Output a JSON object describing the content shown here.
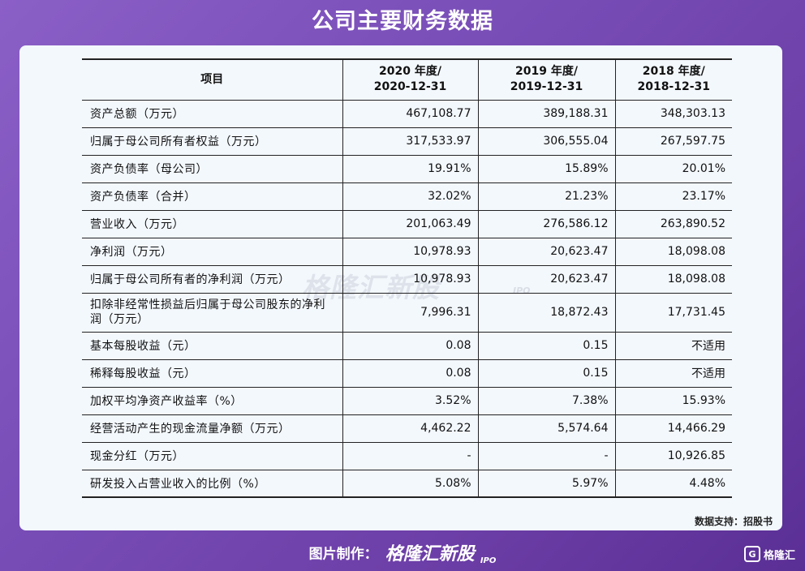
{
  "title": "公司主要财务数据",
  "table": {
    "header": {
      "item": "项目",
      "cols": [
        {
          "line1": "2020 年度/",
          "line2": "2020-12-31"
        },
        {
          "line1": "2019 年度/",
          "line2": "2019-12-31"
        },
        {
          "line1": "2018 年度/",
          "line2": "2018-12-31"
        }
      ]
    },
    "rows": [
      {
        "label": "资产总额（万元）",
        "v2020": "467,108.77",
        "v2019": "389,188.31",
        "v2018": "348,303.13"
      },
      {
        "label": "归属于母公司所有者权益（万元）",
        "v2020": "317,533.97",
        "v2019": "306,555.04",
        "v2018": "267,597.75"
      },
      {
        "label": "资产负债率（母公司）",
        "v2020": "19.91%",
        "v2019": "15.89%",
        "v2018": "20.01%"
      },
      {
        "label": "资产负债率（合并）",
        "v2020": "32.02%",
        "v2019": "21.23%",
        "v2018": "23.17%"
      },
      {
        "label": "营业收入（万元）",
        "v2020": "201,063.49",
        "v2019": "276,586.12",
        "v2018": "263,890.52"
      },
      {
        "label": "净利润（万元）",
        "v2020": "10,978.93",
        "v2019": "20,623.47",
        "v2018": "18,098.08"
      },
      {
        "label": "归属于母公司所有者的净利润（万元）",
        "v2020": "10,978.93",
        "v2019": "20,623.47",
        "v2018": "18,098.08"
      },
      {
        "label": "扣除非经常性损益后归属于母公司股东的净利润（万元）",
        "v2020": "7,996.31",
        "v2019": "18,872.43",
        "v2018": "17,731.45"
      },
      {
        "label": "基本每股收益（元）",
        "v2020": "0.08",
        "v2019": "0.15",
        "v2018": "不适用"
      },
      {
        "label": "稀释每股收益（元）",
        "v2020": "0.08",
        "v2019": "0.15",
        "v2018": "不适用"
      },
      {
        "label": "加权平均净资产收益率（%）",
        "v2020": "3.52%",
        "v2019": "7.38%",
        "v2018": "15.93%"
      },
      {
        "label": "经营活动产生的现金流量净额（万元）",
        "v2020": "4,462.22",
        "v2019": "5,574.64",
        "v2018": "14,466.29"
      },
      {
        "label": "现金分红（万元）",
        "v2020": "-",
        "v2019": "-",
        "v2018": "10,926.85"
      },
      {
        "label": "研发投入占营业收入的比例（%）",
        "v2020": "5.08%",
        "v2019": "5.97%",
        "v2018": "4.48%"
      }
    ]
  },
  "watermark": {
    "text": "格隆汇新股",
    "sub": "IPO"
  },
  "source": "数据支持：招股书",
  "footer": {
    "credit": "图片制作：",
    "brand": "格隆汇新股",
    "ipo": "IPO"
  },
  "corner_logo": {
    "icon": "G",
    "text": "格隆汇"
  },
  "colors": {
    "background_start": "#8a5fc6",
    "background_end": "#5a2f95",
    "card": "#f3f8fd"
  }
}
